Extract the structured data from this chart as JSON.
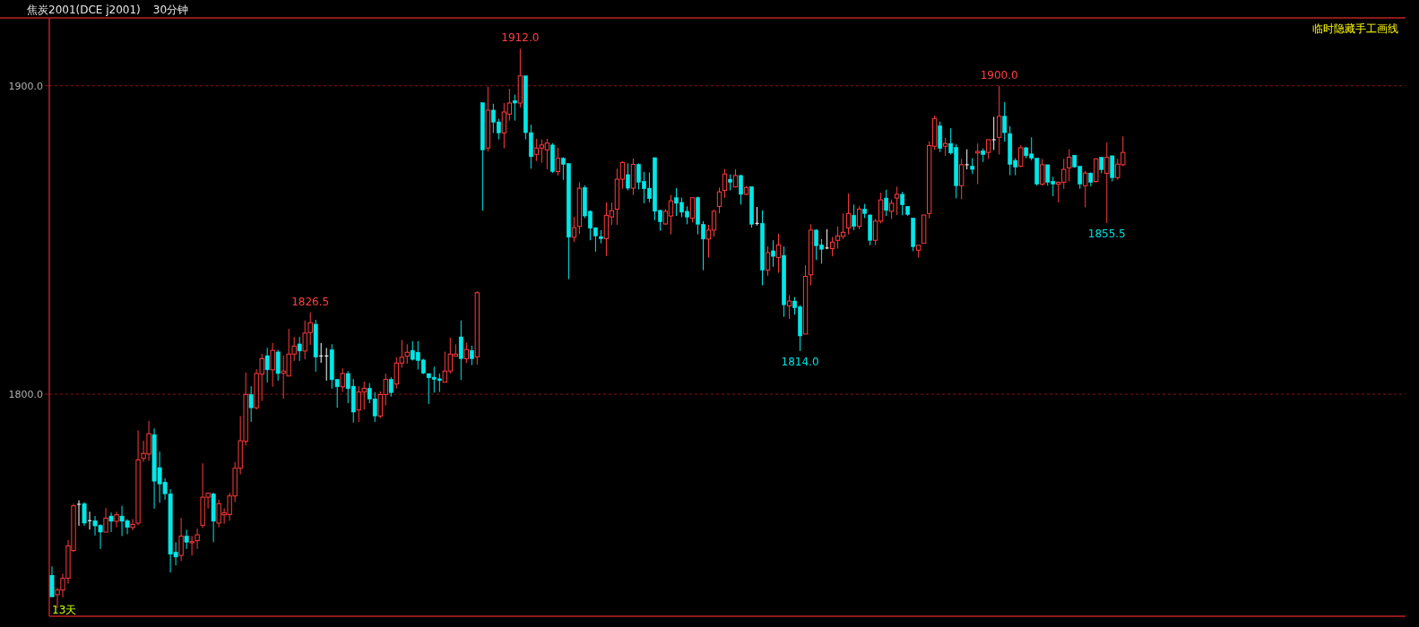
{
  "chart_data": {
    "type": "candlestick",
    "title": "焦炭2001(DCE j2001)",
    "subtitle": "30分钟",
    "categories": [
      null,
      null,
      null,
      null,
      null,
      null,
      null,
      null,
      null,
      null,
      null,
      null,
      null,
      null,
      null,
      null,
      null,
      null,
      null,
      null,
      null,
      null,
      null,
      null,
      null,
      null,
      null,
      null,
      null,
      null,
      null,
      null,
      null,
      null,
      null,
      null,
      null,
      null,
      null,
      null,
      null,
      null,
      null,
      null,
      null,
      null,
      null,
      null,
      null,
      null,
      null,
      null,
      null,
      null,
      null,
      null,
      null,
      null,
      null,
      null,
      null,
      null,
      null,
      null,
      null,
      null,
      null,
      null,
      null,
      null,
      null,
      null,
      null,
      null,
      null,
      null,
      null,
      null,
      null,
      null,
      null,
      null,
      null,
      null,
      null,
      null,
      null,
      null,
      null,
      null,
      null,
      null,
      null,
      null,
      null,
      null,
      null,
      null,
      null,
      null,
      null,
      null,
      null,
      null,
      null,
      null,
      null,
      null,
      null,
      null,
      null,
      null,
      null,
      null,
      null,
      null,
      null,
      null,
      null,
      null,
      null,
      null,
      null,
      null,
      null,
      null,
      null,
      null,
      null,
      null,
      null,
      null,
      null,
      null,
      null,
      null,
      null,
      null,
      null,
      null,
      null,
      null,
      null,
      null,
      null,
      null,
      null,
      null,
      null,
      null,
      null,
      null,
      null,
      null,
      null,
      null,
      null,
      null,
      null,
      null,
      null,
      null,
      null,
      null,
      null,
      null,
      null,
      null,
      null,
      null,
      null,
      null,
      null,
      null,
      null,
      null,
      null,
      null,
      null,
      null,
      null,
      null,
      null,
      null,
      null,
      null,
      null,
      null,
      null,
      null,
      null,
      null,
      null,
      null,
      null,
      null,
      null,
      null,
      null,
      null
    ],
    "ohlc": [
      [
        1741.3,
        1744.2,
        1734.3,
        1734.3
      ],
      [
        1735.0,
        1737.2,
        1730.6,
        1736.5
      ],
      [
        1736.5,
        1741.8,
        1734.1,
        1740.3
      ],
      [
        1740.3,
        1752.7,
        1738.6,
        1750.8
      ],
      [
        1749.3,
        1764.5,
        1748.8,
        1763.8
      ],
      [
        1764.3,
        1765.6,
        1757.3,
        1764.3
      ],
      [
        1764.5,
        1765.0,
        1757.3,
        1758.2
      ],
      [
        1759.0,
        1761.9,
        1756.1,
        1759.0
      ],
      [
        1759.0,
        1760.5,
        1754.2,
        1757.3
      ],
      [
        1757.5,
        1757.8,
        1749.8,
        1755.3
      ],
      [
        1755.3,
        1763.1,
        1755.3,
        1759.8
      ],
      [
        1760.5,
        1761.6,
        1755.3,
        1758.8
      ],
      [
        1758.8,
        1761.9,
        1756.8,
        1760.9
      ],
      [
        1760.5,
        1763.8,
        1754.0,
        1758.8
      ],
      [
        1759.0,
        1759.5,
        1754.6,
        1756.8
      ],
      [
        1756.8,
        1759.5,
        1755.9,
        1757.8
      ],
      [
        1758.2,
        1788.3,
        1757.5,
        1778.7
      ],
      [
        1779.2,
        1784.9,
        1778.1,
        1780.8
      ],
      [
        1780.6,
        1791.3,
        1778.4,
        1787.2
      ],
      [
        1786.9,
        1788.9,
        1762.9,
        1771.8
      ],
      [
        1776.2,
        1781.4,
        1764.8,
        1770.9
      ],
      [
        1771.5,
        1772.7,
        1765.8,
        1767.7
      ],
      [
        1767.7,
        1769.2,
        1742.2,
        1748.1
      ],
      [
        1748.8,
        1752.0,
        1744.5,
        1747.2
      ],
      [
        1747.7,
        1759.9,
        1745.9,
        1754.0
      ],
      [
        1754.0,
        1756.1,
        1749.8,
        1752.0
      ],
      [
        1751.8,
        1754.0,
        1747.7,
        1752.2
      ],
      [
        1752.5,
        1756.4,
        1749.8,
        1754.4
      ],
      [
        1757.5,
        1777.6,
        1756.6,
        1766.6
      ],
      [
        1766.6,
        1767.9,
        1762.9,
        1767.9
      ],
      [
        1767.7,
        1768.1,
        1752.0,
        1758.8
      ],
      [
        1758.2,
        1765.8,
        1756.8,
        1764.5
      ],
      [
        1760.9,
        1763.0,
        1758.0,
        1761.5
      ],
      [
        1761.0,
        1768.0,
        1759.0,
        1767.0
      ],
      [
        1767.0,
        1778.0,
        1765.0,
        1776.0
      ],
      [
        1776.0,
        1792.9,
        1774.0,
        1784.9
      ],
      [
        1784.7,
        1807.0,
        1783.4,
        1799.9
      ],
      [
        1799.9,
        1802.6,
        1791.0,
        1795.6
      ],
      [
        1795.6,
        1808.1,
        1795.0,
        1806.7
      ],
      [
        1806.5,
        1813.1,
        1797.8,
        1811.5
      ],
      [
        1812.5,
        1815.0,
        1803.8,
        1807.9
      ],
      [
        1807.9,
        1816.6,
        1802.4,
        1814.2
      ],
      [
        1813.7,
        1814.4,
        1804.4,
        1806.7
      ],
      [
        1806.8,
        1812.5,
        1798.5,
        1807.5
      ],
      [
        1805.9,
        1821.2,
        1805.9,
        1813.0
      ],
      [
        1813.0,
        1818.6,
        1810.8,
        1815.6
      ],
      [
        1816.3,
        1818.6,
        1810.8,
        1814.0
      ],
      [
        1814.0,
        1823.9,
        1811.3,
        1819.8
      ],
      [
        1820.0,
        1826.5,
        1816.0,
        1823.2
      ],
      [
        1822.7,
        1824.1,
        1807.3,
        1812.0
      ],
      [
        1812.4,
        1816.6,
        1810.2,
        1812.4
      ],
      [
        1812.4,
        1815.0,
        1804.4,
        1812.4
      ],
      [
        1814.4,
        1816.2,
        1801.8,
        1804.7
      ],
      [
        1804.8,
        1804.8,
        1795.6,
        1802.4
      ],
      [
        1802.4,
        1808.4,
        1800.7,
        1806.7
      ],
      [
        1806.7,
        1807.5,
        1797.1,
        1801.8
      ],
      [
        1802.6,
        1804.9,
        1790.8,
        1794.2
      ],
      [
        1794.9,
        1802.6,
        1791.0,
        1800.7
      ],
      [
        1800.7,
        1804.1,
        1795.0,
        1801.9
      ],
      [
        1801.9,
        1803.6,
        1797.1,
        1798.4
      ],
      [
        1798.5,
        1800.7,
        1791.0,
        1792.9
      ],
      [
        1792.9,
        1800.9,
        1792.2,
        1799.9
      ],
      [
        1799.9,
        1806.7,
        1796.3,
        1804.8
      ],
      [
        1804.8,
        1805.5,
        1799.2,
        1800.5
      ],
      [
        1803.3,
        1812.0,
        1801.8,
        1810.1
      ],
      [
        1810.1,
        1817.6,
        1808.6,
        1812.0
      ],
      [
        1812.3,
        1816.2,
        1809.9,
        1813.6
      ],
      [
        1814.2,
        1817.2,
        1810.9,
        1811.3
      ],
      [
        1813.6,
        1817.2,
        1808.0,
        1810.9
      ],
      [
        1811.1,
        1811.5,
        1806.5,
        1806.8
      ],
      [
        1806.7,
        1806.7,
        1796.8,
        1805.3
      ],
      [
        1805.5,
        1808.9,
        1800.5,
        1804.8
      ],
      [
        1805.0,
        1806.7,
        1800.7,
        1804.4
      ],
      [
        1803.9,
        1813.8,
        1803.9,
        1807.5
      ],
      [
        1807.5,
        1818.3,
        1806.7,
        1813.0
      ],
      [
        1812.3,
        1816.2,
        1812.3,
        1813.0
      ],
      [
        1818.6,
        1823.9,
        1804.6,
        1811.5
      ],
      [
        1811.5,
        1816.7,
        1810.1,
        1814.5
      ],
      [
        1814.2,
        1815.7,
        1809.4,
        1811.5
      ],
      [
        1812.1,
        1833.4,
        1809.6,
        1832.9
      ],
      [
        1894.5,
        1894.5,
        1859.5,
        1879.2
      ],
      [
        1879.8,
        1899.7,
        1878.7,
        1892.1
      ],
      [
        1892.1,
        1894.2,
        1884.7,
        1888.2
      ],
      [
        1888.3,
        1889.3,
        1882.6,
        1884.7
      ],
      [
        1884.7,
        1894.4,
        1879.7,
        1891.5
      ],
      [
        1890.8,
        1899.0,
        1888.7,
        1894.4
      ],
      [
        1895.2,
        1897.1,
        1888.7,
        1894.4
      ],
      [
        1894.4,
        1912.0,
        1892.9,
        1903.2
      ],
      [
        1903.2,
        1903.2,
        1882.6,
        1884.8
      ],
      [
        1884.8,
        1887.4,
        1873.1,
        1877.0
      ],
      [
        1877.8,
        1882.8,
        1875.6,
        1879.8
      ],
      [
        1879.8,
        1882.6,
        1875.0,
        1880.8
      ],
      [
        1879.2,
        1882.8,
        1872.9,
        1881.4
      ],
      [
        1880.8,
        1881.4,
        1871.7,
        1872.2
      ],
      [
        1872.2,
        1879.9,
        1870.9,
        1876.5
      ],
      [
        1876.5,
        1876.8,
        1869.5,
        1874.5
      ],
      [
        1874.8,
        1874.8,
        1837.3,
        1850.9
      ],
      [
        1850.9,
        1857.5,
        1849.3,
        1854.0
      ],
      [
        1854.4,
        1868.8,
        1852.0,
        1866.8
      ],
      [
        1867.0,
        1867.7,
        1857.1,
        1857.8
      ],
      [
        1859.3,
        1859.6,
        1849.9,
        1853.8
      ],
      [
        1854.0,
        1854.0,
        1846.2,
        1851.3
      ],
      [
        1851.1,
        1853.2,
        1848.9,
        1850.4
      ],
      [
        1850.4,
        1862.2,
        1844.8,
        1858.0
      ],
      [
        1857.5,
        1862.2,
        1854.9,
        1859.5
      ],
      [
        1860.0,
        1873.1,
        1854.9,
        1869.7
      ],
      [
        1869.7,
        1875.5,
        1866.6,
        1875.1
      ],
      [
        1871.2,
        1874.8,
        1866.1,
        1866.8
      ],
      [
        1866.8,
        1876.4,
        1864.6,
        1874.5
      ],
      [
        1874.5,
        1874.8,
        1866.4,
        1868.7
      ],
      [
        1869.0,
        1872.1,
        1861.9,
        1866.6
      ],
      [
        1866.8,
        1871.9,
        1862.2,
        1863.4
      ],
      [
        1876.7,
        1876.7,
        1856.4,
        1859.3
      ],
      [
        1859.6,
        1859.8,
        1853.0,
        1855.9
      ],
      [
        1855.2,
        1860.0,
        1854.9,
        1859.3
      ],
      [
        1857.8,
        1864.6,
        1851.8,
        1862.7
      ],
      [
        1863.7,
        1866.8,
        1857.8,
        1861.9
      ],
      [
        1862.2,
        1863.7,
        1857.4,
        1859.0
      ],
      [
        1859.3,
        1860.9,
        1855.1,
        1857.4
      ],
      [
        1857.1,
        1863.8,
        1855.7,
        1863.7
      ],
      [
        1863.7,
        1864.1,
        1851.8,
        1855.1
      ],
      [
        1855.1,
        1856.1,
        1840.2,
        1850.3
      ],
      [
        1850.3,
        1854.9,
        1844.3,
        1853.2
      ],
      [
        1853.2,
        1859.8,
        1851.1,
        1859.3
      ],
      [
        1860.9,
        1867.0,
        1858.6,
        1865.6
      ],
      [
        1866.1,
        1873.0,
        1863.7,
        1871.4
      ],
      [
        1869.7,
        1871.2,
        1866.1,
        1868.7
      ],
      [
        1867.2,
        1872.9,
        1867.0,
        1870.9
      ],
      [
        1870.9,
        1871.2,
        1861.5,
        1864.8
      ],
      [
        1864.8,
        1867.5,
        1864.6,
        1867.0
      ],
      [
        1867.3,
        1867.3,
        1854.0,
        1855.1
      ],
      [
        1855.4,
        1860.7,
        1854.7,
        1855.4
      ],
      [
        1855.4,
        1859.6,
        1835.3,
        1840.2
      ],
      [
        1840.2,
        1847.9,
        1838.4,
        1845.9
      ],
      [
        1846.5,
        1849.9,
        1841.3,
        1844.7
      ],
      [
        1844.3,
        1852.0,
        1839.4,
        1848.4
      ],
      [
        1845.0,
        1847.9,
        1825.1,
        1829.0
      ],
      [
        1828.6,
        1832.1,
        1824.4,
        1830.2
      ],
      [
        1830.2,
        1831.5,
        1825.8,
        1828.0
      ],
      [
        1828.3,
        1828.9,
        1814.0,
        1818.9
      ],
      [
        1819.5,
        1841.8,
        1819.5,
        1838.2
      ],
      [
        1838.7,
        1855.1,
        1835.3,
        1853.2
      ],
      [
        1853.2,
        1853.5,
        1843.5,
        1848.1
      ],
      [
        1848.4,
        1850.3,
        1842.3,
        1847.0
      ],
      [
        1847.4,
        1853.5,
        1847.0,
        1847.4
      ],
      [
        1847.2,
        1851.0,
        1844.7,
        1849.3
      ],
      [
        1849.9,
        1854.4,
        1847.2,
        1851.3
      ],
      [
        1851.2,
        1858.6,
        1850.4,
        1852.5
      ],
      [
        1853.9,
        1865.1,
        1851.8,
        1858.6
      ],
      [
        1858.0,
        1861.5,
        1853.2,
        1854.4
      ],
      [
        1854.4,
        1861.0,
        1853.5,
        1860.0
      ],
      [
        1860.0,
        1861.7,
        1857.1,
        1858.6
      ],
      [
        1858.1,
        1858.3,
        1848.3,
        1849.9
      ],
      [
        1849.9,
        1856.8,
        1848.3,
        1856.1
      ],
      [
        1856.1,
        1865.3,
        1855.4,
        1863.0
      ],
      [
        1863.6,
        1866.3,
        1857.8,
        1859.6
      ],
      [
        1859.3,
        1863.1,
        1856.8,
        1861.9
      ],
      [
        1863.6,
        1867.3,
        1858.1,
        1864.8
      ],
      [
        1864.8,
        1865.6,
        1858.0,
        1861.4
      ],
      [
        1860.9,
        1860.9,
        1857.8,
        1858.3
      ],
      [
        1857.1,
        1857.1,
        1846.4,
        1847.8
      ],
      [
        1846.7,
        1848.3,
        1844.3,
        1848.3
      ],
      [
        1848.9,
        1858.1,
        1848.9,
        1858.1
      ],
      [
        1858.6,
        1882.0,
        1857.0,
        1880.6
      ],
      [
        1880.4,
        1890.3,
        1879.2,
        1889.4
      ],
      [
        1887.0,
        1888.4,
        1878.5,
        1879.7
      ],
      [
        1880.4,
        1883.1,
        1877.3,
        1881.3
      ],
      [
        1881.3,
        1886.2,
        1877.7,
        1878.2
      ],
      [
        1880.0,
        1881.1,
        1863.5,
        1867.6
      ],
      [
        1867.6,
        1876.3,
        1863.2,
        1874.4
      ],
      [
        1874.4,
        1879.4,
        1872.9,
        1874.4
      ],
      [
        1873.9,
        1876.5,
        1871.4,
        1872.9
      ],
      [
        1878.2,
        1881.3,
        1868.1,
        1878.7
      ],
      [
        1878.9,
        1879.7,
        1875.3,
        1877.7
      ],
      [
        1878.4,
        1882.6,
        1876.3,
        1882.5
      ],
      [
        1882.5,
        1889.9,
        1879.2,
        1882.5
      ],
      [
        1883.3,
        1900.0,
        1877.7,
        1890.1
      ],
      [
        1890.1,
        1894.7,
        1881.9,
        1884.8
      ],
      [
        1884.5,
        1886.9,
        1871.0,
        1874.5
      ],
      [
        1875.8,
        1876.5,
        1871.0,
        1873.6
      ],
      [
        1873.9,
        1880.7,
        1873.6,
        1879.9
      ],
      [
        1879.9,
        1880.2,
        1876.5,
        1877.3
      ],
      [
        1877.9,
        1883.3,
        1875.8,
        1876.5
      ],
      [
        1876.5,
        1876.5,
        1867.6,
        1868.1
      ],
      [
        1868.1,
        1876.3,
        1867.6,
        1874.4
      ],
      [
        1874.4,
        1874.4,
        1867.6,
        1868.7
      ],
      [
        1869.0,
        1870.5,
        1864.2,
        1868.1
      ],
      [
        1868.1,
        1869.0,
        1862.2,
        1868.7
      ],
      [
        1868.7,
        1876.3,
        1866.6,
        1872.9
      ],
      [
        1873.4,
        1879.4,
        1869.0,
        1876.8
      ],
      [
        1877.5,
        1877.5,
        1873.4,
        1873.7
      ],
      [
        1873.9,
        1873.9,
        1866.6,
        1868.1
      ],
      [
        1867.6,
        1872.4,
        1860.6,
        1871.7
      ],
      [
        1871.7,
        1871.9,
        1867.4,
        1868.7
      ],
      [
        1869.0,
        1876.5,
        1868.5,
        1876.3
      ],
      [
        1876.8,
        1876.8,
        1871.6,
        1872.8
      ],
      [
        1871.6,
        1881.6,
        1855.5,
        1876.8
      ],
      [
        1877.3,
        1877.3,
        1869.0,
        1870.2
      ],
      [
        1870.2,
        1876.3,
        1869.5,
        1874.6
      ],
      [
        1874.4,
        1883.6,
        1873.9,
        1878.4
      ]
    ],
    "ylim": [
      1728,
      1922
    ],
    "yticks": [
      {
        "value": 1800,
        "label": "1800.0"
      },
      {
        "value": 1900,
        "label": "1900.0"
      }
    ],
    "grid": "y",
    "annotations": [
      "临时隐藏手工画线",
      "13天",
      {
        "text": "1912.0",
        "y": 1912.0
      },
      {
        "text": "1826.5",
        "y": 1826.5
      },
      {
        "text": "1814.0",
        "y": 1814.0
      },
      {
        "text": "1900.0",
        "y": 1900.0
      },
      {
        "text": "1855.5",
        "y": 1855.5
      }
    ]
  }
}
